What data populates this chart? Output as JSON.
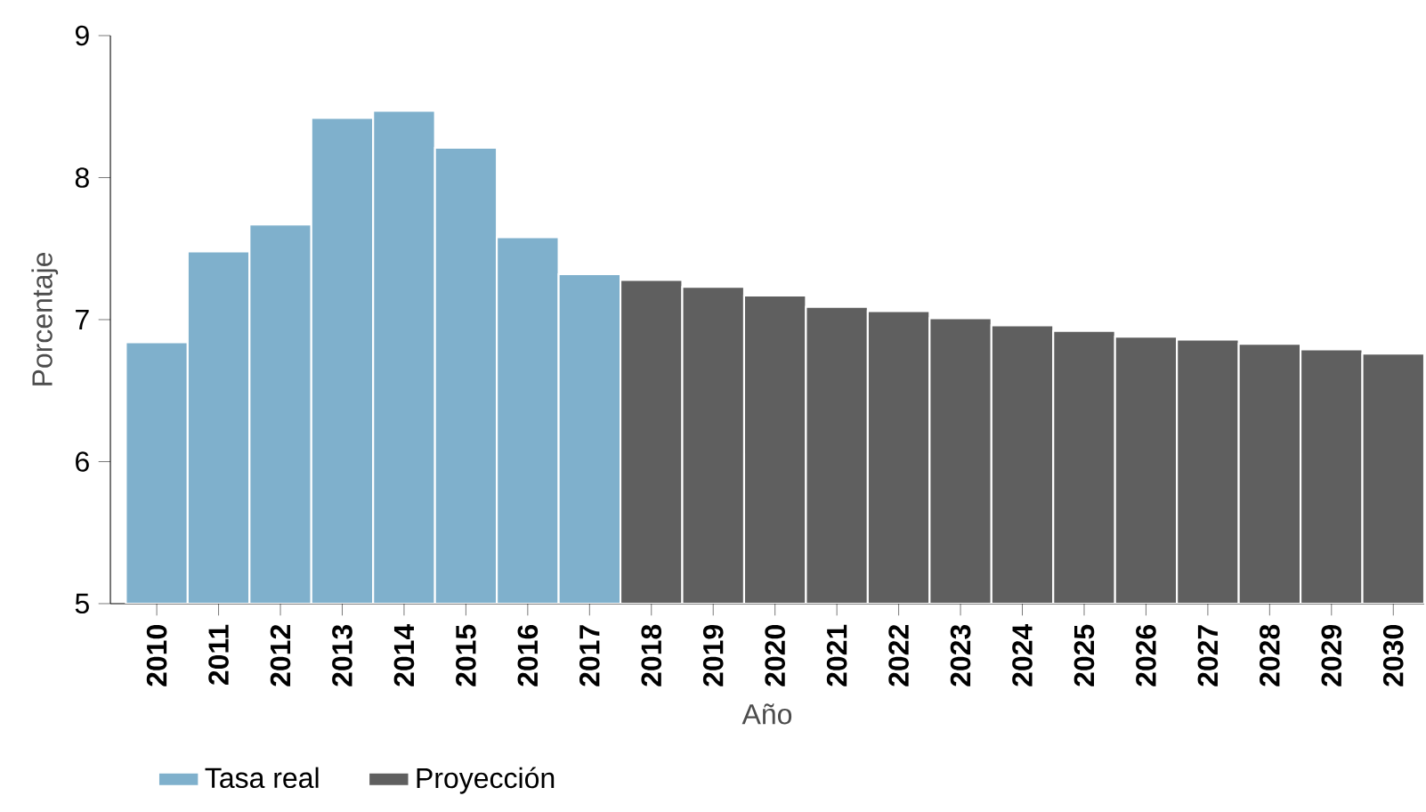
{
  "chart_data": {
    "type": "bar",
    "xlabel": "Año",
    "ylabel": "Porcentaje",
    "categories": [
      "2010",
      "2011",
      "2012",
      "2013",
      "2014",
      "2015",
      "2016",
      "2017",
      "2018",
      "2019",
      "2020",
      "2021",
      "2022",
      "2023",
      "2024",
      "2025",
      "2026",
      "2027",
      "2028",
      "2029",
      "2030"
    ],
    "series": [
      {
        "name": "Tasa real",
        "color": "#7fb0cc",
        "values": [
          6.84,
          7.48,
          7.67,
          8.42,
          8.47,
          8.21,
          7.58,
          7.32,
          null,
          null,
          null,
          null,
          null,
          null,
          null,
          null,
          null,
          null,
          null,
          null,
          null
        ]
      },
      {
        "name": "Proyección",
        "color": "#5f5f5f",
        "values": [
          null,
          null,
          null,
          null,
          null,
          null,
          null,
          null,
          7.28,
          7.23,
          7.17,
          7.09,
          7.06,
          7.01,
          6.96,
          6.92,
          6.88,
          6.86,
          6.83,
          6.79,
          6.76
        ]
      }
    ],
    "ylim": [
      5,
      9
    ],
    "yticks": [
      5,
      6,
      7,
      8,
      9
    ],
    "grid": false,
    "legend": "bottom"
  }
}
